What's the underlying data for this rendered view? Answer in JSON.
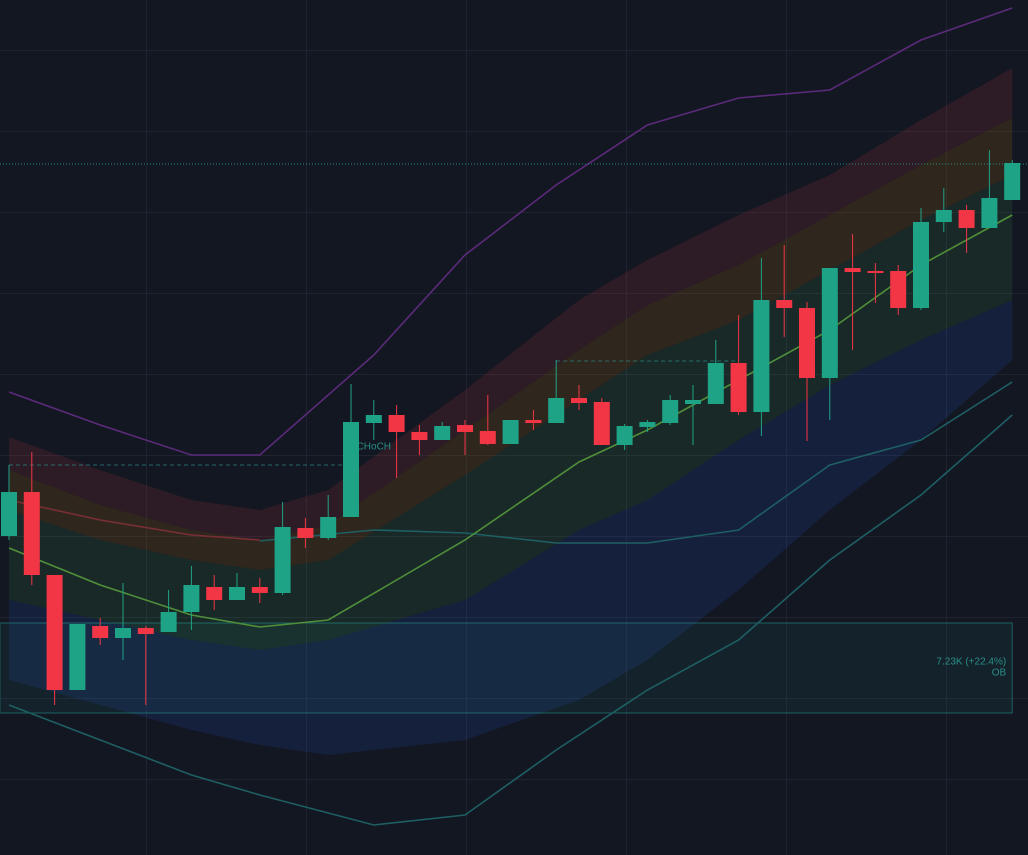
{
  "chart_data": {
    "type": "candlestick",
    "categories": [
      null,
      null,
      null,
      null,
      null,
      null,
      null,
      null,
      null,
      null,
      null,
      null,
      null,
      null,
      null,
      null,
      null,
      null,
      null,
      null,
      null,
      null,
      null,
      null,
      null,
      null,
      null,
      null,
      null,
      null,
      null,
      null,
      null,
      null,
      null,
      null,
      null,
      null,
      null,
      null,
      null,
      null,
      null,
      null,
      null
    ],
    "open": [
      319,
      363,
      280,
      165,
      229,
      217,
      227,
      223,
      243,
      268,
      255,
      268,
      262,
      327,
      317,
      338,
      432,
      440,
      423,
      415,
      430,
      424,
      411,
      435,
      432,
      457,
      453,
      410,
      428,
      432,
      451,
      451,
      492,
      443,
      555,
      547,
      477,
      587,
      584,
      584,
      547,
      633,
      645,
      627,
      655
    ],
    "high": [
      390,
      403,
      280,
      231,
      237,
      272,
      229,
      265,
      289,
      280,
      282,
      277,
      353,
      337,
      360,
      471,
      455,
      450,
      430,
      433,
      435,
      460,
      435,
      445,
      495,
      470,
      457,
      431,
      435,
      460,
      470,
      515,
      540,
      597,
      610,
      553,
      587,
      621,
      592,
      590,
      647,
      667,
      650,
      705,
      695
    ],
    "low": [
      315,
      270,
      150,
      165,
      210,
      195,
      150,
      223,
      225,
      245,
      255,
      252,
      260,
      307,
      315,
      338,
      415,
      377,
      400,
      415,
      400,
      410,
      411,
      425,
      432,
      445,
      410,
      405,
      423,
      430,
      410,
      451,
      440,
      419,
      518,
      414,
      435,
      505,
      552,
      540,
      545,
      623,
      602,
      627,
      655
    ],
    "close": [
      363,
      280,
      165,
      231,
      217,
      227,
      221,
      243,
      270,
      255,
      268,
      262,
      328,
      317,
      338,
      433,
      440,
      423,
      415,
      429,
      423,
      411,
      435,
      432,
      457,
      452,
      410,
      429,
      433,
      455,
      455,
      492,
      443,
      555,
      547,
      477,
      587,
      583,
      582,
      547,
      633,
      645,
      627,
      657,
      692
    ],
    "up_color": "#1fa386",
    "down_color": "#f23645",
    "ylim": [
      0,
      855
    ],
    "bands": [
      {
        "color": "#f23645",
        "x": [
          0,
          4,
          8,
          11,
          14,
          20,
          25,
          28,
          32,
          36,
          40,
          44
        ],
        "upper": [
          418,
          385,
          355,
          345,
          365,
          465,
          555,
          595,
          640,
          680,
          735,
          787
        ],
        "lower": [
          385,
          350,
          325,
          315,
          330,
          425,
          505,
          550,
          590,
          640,
          690,
          737
        ]
      },
      {
        "color": "#ff9800",
        "x": [
          0,
          4,
          8,
          11,
          14,
          20,
          25,
          28,
          32,
          36,
          40,
          44
        ],
        "upper": [
          385,
          350,
          325,
          315,
          330,
          425,
          505,
          550,
          590,
          640,
          690,
          737
        ],
        "lower": [
          345,
          315,
          295,
          285,
          295,
          380,
          455,
          500,
          535,
          585,
          635,
          680
        ]
      },
      {
        "color": "#4caf50",
        "x": [
          0,
          4,
          8,
          11,
          14,
          20,
          25,
          28,
          32,
          36,
          40,
          44
        ],
        "upper": [
          345,
          315,
          295,
          285,
          295,
          380,
          455,
          500,
          535,
          585,
          635,
          680
        ],
        "lower": [
          255,
          235,
          215,
          205,
          215,
          255,
          325,
          355,
          415,
          470,
          515,
          555
        ]
      },
      {
        "color": "#2962ff",
        "x": [
          0,
          4,
          8,
          11,
          14,
          20,
          25,
          28,
          32,
          36,
          40,
          44
        ],
        "upper": [
          255,
          235,
          215,
          205,
          215,
          255,
          325,
          355,
          415,
          470,
          515,
          555
        ],
        "lower": [
          175,
          150,
          125,
          110,
          100,
          115,
          155,
          195,
          265,
          345,
          415,
          495
        ]
      }
    ],
    "lines": [
      {
        "color": "#5b2a7a",
        "x": [
          0,
          4,
          8,
          11,
          16,
          20,
          24,
          28,
          32,
          36,
          40,
          44
        ],
        "values": [
          463,
          430,
          400,
          400,
          500,
          600,
          670,
          730,
          757,
          765,
          815,
          847
        ]
      },
      {
        "color": "#1e5f63",
        "x": [
          0,
          4,
          8,
          11,
          16,
          20,
          24,
          28,
          32,
          36,
          40,
          44
        ],
        "values": [
          150,
          115,
          80,
          60,
          30,
          40,
          105,
          165,
          215,
          295,
          360,
          440
        ]
      },
      {
        "color": "#1e5f63",
        "x": [
          11,
          16,
          20,
          24,
          28,
          32,
          36,
          40,
          44
        ],
        "values": [
          314,
          325,
          322,
          312,
          312,
          325,
          390,
          415,
          473
        ]
      },
      {
        "color": "#4f8f3a",
        "x": [
          0,
          4,
          8,
          11,
          14,
          20,
          25,
          28,
          32,
          36,
          40,
          44
        ],
        "values": [
          307,
          270,
          240,
          228,
          235,
          315,
          393,
          425,
          475,
          525,
          590,
          640
        ]
      },
      {
        "color": "#7a2e35",
        "x": [
          0,
          4,
          8,
          11
        ],
        "values": [
          355,
          335,
          320,
          315
        ]
      }
    ],
    "levels": [
      {
        "value": 390,
        "x": [
          0,
          15
        ]
      },
      {
        "value": 494,
        "x": [
          24,
          32
        ]
      }
    ],
    "price_line": 691,
    "choch": {
      "label": "CHoCH",
      "x": 16,
      "value": 408
    },
    "order_block": {
      "top": 232,
      "bottom": 142,
      "x": [
        -0.4,
        44
      ],
      "label": "OB",
      "annotation": "7.23K (+22.4%)"
    }
  }
}
